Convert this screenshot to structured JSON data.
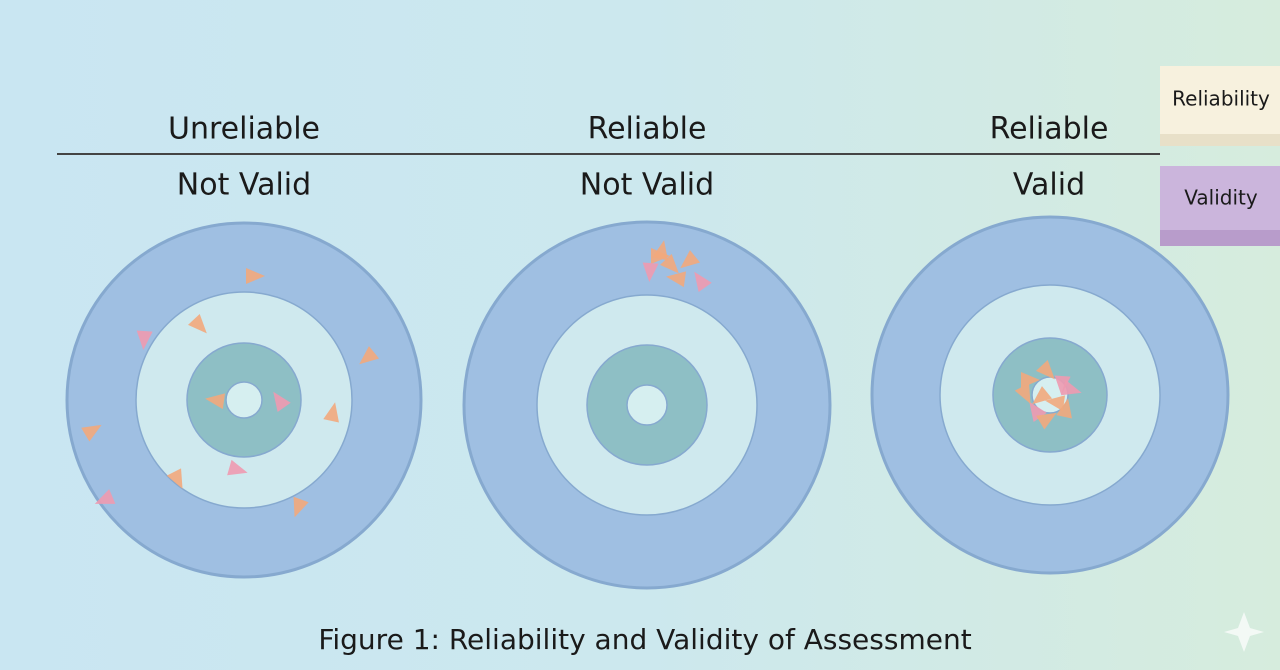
{
  "targets": [
    {
      "reliability": "Unreliable",
      "validity": "Not Valid"
    },
    {
      "reliability": "Reliable",
      "validity": "Not Valid"
    },
    {
      "reliability": "Reliable",
      "validity": "Valid"
    }
  ],
  "legend": {
    "reliability": "Reliability",
    "validity": "Validity"
  },
  "caption": "Figure 1: Reliability and Validity of Assessment"
}
